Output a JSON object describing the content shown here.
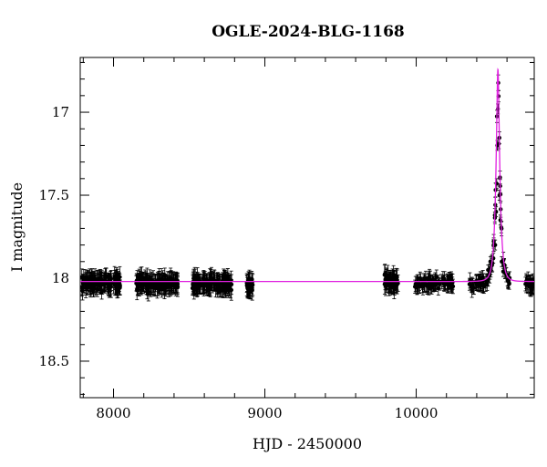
{
  "chart_data": {
    "type": "scatter",
    "title": "OGLE-2024-BLG-1168",
    "xlabel": "HJD - 2450000",
    "ylabel": "I magnitude",
    "xlim": [
      7780,
      10780
    ],
    "ylim": [
      18.72,
      16.67
    ],
    "y_inverted": true,
    "x_major_ticks": [
      8000,
      9000,
      10000
    ],
    "x_tick_labels": [
      "8000",
      "9000",
      "10000"
    ],
    "y_major_ticks": [
      17,
      17.5,
      18,
      18.5
    ],
    "y_tick_labels": [
      "17",
      "17.5",
      "18",
      "18.5"
    ],
    "grid": false,
    "legend": "none",
    "colors": {
      "points": "#000000",
      "model": "#e020e0",
      "axes": "#000000"
    },
    "model": {
      "type": "paczynski",
      "t0": 10540,
      "tE": 25,
      "u0": 0.32,
      "baseline_mag": 18.02
    },
    "series": [
      {
        "type": "scatter_with_errorbars",
        "seasons": [
          {
            "x": [
              7790,
              8045
            ],
            "mean_mag": 18.03,
            "scatter": 0.035,
            "err": 0.05,
            "n": 140
          },
          {
            "x": [
              8150,
              8430
            ],
            "mean_mag": 18.03,
            "scatter": 0.035,
            "err": 0.05,
            "n": 140
          },
          {
            "x": [
              8520,
              8780
            ],
            "mean_mag": 18.03,
            "scatter": 0.035,
            "err": 0.05,
            "n": 140
          },
          {
            "x": [
              8880,
              8920
            ],
            "mean_mag": 18.04,
            "scatter": 0.04,
            "err": 0.05,
            "n": 30
          },
          {
            "x": [
              9790,
              9880
            ],
            "mean_mag": 18.02,
            "scatter": 0.04,
            "err": 0.05,
            "n": 50
          },
          {
            "x": [
              9990,
              10250
            ],
            "mean_mag": 18.03,
            "scatter": 0.03,
            "err": 0.04,
            "n": 90
          },
          {
            "x": [
              10350,
              10620
            ],
            "mean_mag": 18.04,
            "scatter": 0.03,
            "err": 0.04,
            "n": 80
          },
          {
            "x": [
              10720,
              10780
            ],
            "mean_mag": 18.04,
            "scatter": 0.03,
            "err": 0.04,
            "n": 25
          }
        ],
        "peak_points": [
          [
            10475,
            17.95
          ],
          [
            10490,
            17.9
          ],
          [
            10510,
            17.88
          ],
          [
            10522,
            17.8
          ],
          [
            10528,
            17.6
          ],
          [
            10532,
            17.43
          ],
          [
            10536,
            17.2
          ],
          [
            10540,
            16.98
          ],
          [
            10546,
            17.19
          ],
          [
            10550,
            17.5
          ],
          [
            10556,
            17.65
          ],
          [
            10565,
            17.9
          ],
          [
            10575,
            17.96
          ],
          [
            10590,
            17.97
          ]
        ]
      }
    ]
  }
}
